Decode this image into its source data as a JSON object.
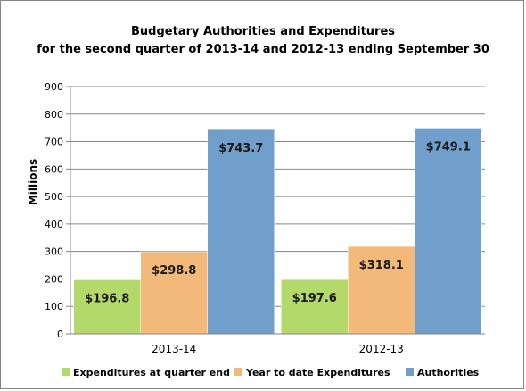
{
  "chart_data": {
    "type": "bar",
    "title": "Budgetary Authorities and Expenditures",
    "subtitle": "for the second quarter of 2013-14 and 2012-13 ending September 30",
    "xlabel": "",
    "ylabel": "Millions",
    "ylim": [
      0,
      900
    ],
    "yticks": [
      0,
      100,
      200,
      300,
      400,
      500,
      600,
      700,
      800,
      900
    ],
    "grid": true,
    "legend_position": "bottom",
    "categories": [
      "2013-14",
      "2012-13"
    ],
    "series": [
      {
        "name": "Expenditures at quarter end",
        "color": "#b3d96a",
        "values": [
          196.8,
          197.6
        ],
        "labels": [
          "$196.8",
          "$197.6"
        ]
      },
      {
        "name": "Year to date Expenditures",
        "color": "#f2b97a",
        "values": [
          298.8,
          318.1
        ],
        "labels": [
          "$298.8",
          "$318.1"
        ]
      },
      {
        "name": "Authorities",
        "color": "#6f9fca",
        "values": [
          743.7,
          749.1
        ],
        "labels": [
          "$743.7",
          "$749.1"
        ]
      }
    ]
  }
}
